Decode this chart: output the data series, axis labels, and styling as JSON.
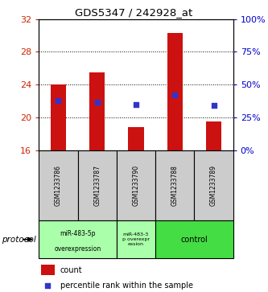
{
  "title": "GDS5347 / 242928_at",
  "samples": [
    "GSM1233786",
    "GSM1233787",
    "GSM1233790",
    "GSM1233788",
    "GSM1233789"
  ],
  "count_values": [
    24.0,
    25.5,
    18.8,
    30.3,
    19.5
  ],
  "percentile_values": [
    38,
    37,
    35,
    42,
    34
  ],
  "ylim_left": [
    16,
    32
  ],
  "yticks_left": [
    16,
    20,
    24,
    28,
    32
  ],
  "ylim_right": [
    0,
    100
  ],
  "yticks_right": [
    0,
    25,
    50,
    75,
    100
  ],
  "bar_color": "#cc1111",
  "dot_color": "#3333cc",
  "bar_width": 0.4,
  "dot_size": 25,
  "group1_label1": "miR-483-5p",
  "group1_label2": "overexpression",
  "group2_label": "miR-483-3\np overexpr\nession",
  "group3_label": "control",
  "group1_color": "#aaffaa",
  "group2_color": "#aaffaa",
  "group3_color": "#44dd44",
  "legend_count_label": "count",
  "legend_pct_label": "percentile rank within the sample",
  "protocol_label": "protocol",
  "grid_color": "#000000",
  "grid_linestyle": ":",
  "left_tick_color": "#cc2200",
  "right_tick_color": "#0000cc",
  "label_bg_color": "#cccccc"
}
